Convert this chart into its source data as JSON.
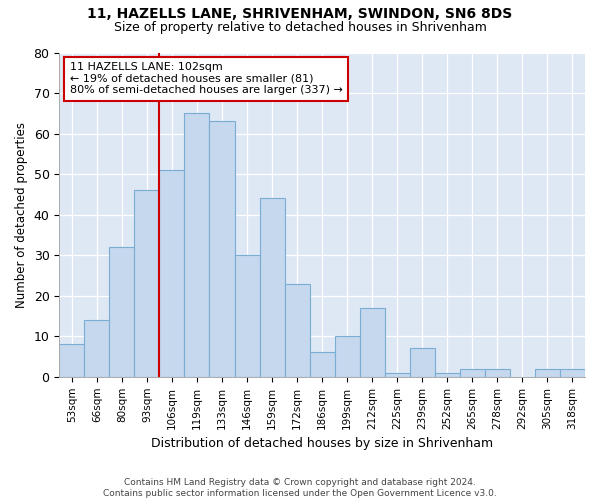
{
  "title1": "11, HAZELLS LANE, SHRIVENHAM, SWINDON, SN6 8DS",
  "title2": "Size of property relative to detached houses in Shrivenham",
  "xlabel": "Distribution of detached houses by size in Shrivenham",
  "ylabel": "Number of detached properties",
  "categories": [
    "53sqm",
    "66sqm",
    "80sqm",
    "93sqm",
    "106sqm",
    "119sqm",
    "133sqm",
    "146sqm",
    "159sqm",
    "172sqm",
    "186sqm",
    "199sqm",
    "212sqm",
    "225sqm",
    "239sqm",
    "252sqm",
    "265sqm",
    "278sqm",
    "292sqm",
    "305sqm",
    "318sqm"
  ],
  "values": [
    8,
    14,
    32,
    46,
    51,
    65,
    63,
    30,
    44,
    23,
    6,
    10,
    17,
    1,
    7,
    1,
    2,
    2,
    0,
    2,
    2
  ],
  "bar_color": "#c5d8ee",
  "bar_edge_color": "#7aadd4",
  "vline_x": 3.5,
  "vline_color": "#cc0000",
  "annotation_text": "11 HAZELLS LANE: 102sqm\n← 19% of detached houses are smaller (81)\n80% of semi-detached houses are larger (337) →",
  "annotation_box_color": "#ffffff",
  "annotation_box_edge": "#cc0000",
  "ylim": [
    0,
    80
  ],
  "yticks": [
    0,
    10,
    20,
    30,
    40,
    50,
    60,
    70,
    80
  ],
  "footer_line1": "Contains HM Land Registry data © Crown copyright and database right 2024.",
  "footer_line2": "Contains public sector information licensed under the Open Government Licence v3.0.",
  "fig_bg_color": "#ffffff",
  "plot_bg_color": "#dde8f4"
}
